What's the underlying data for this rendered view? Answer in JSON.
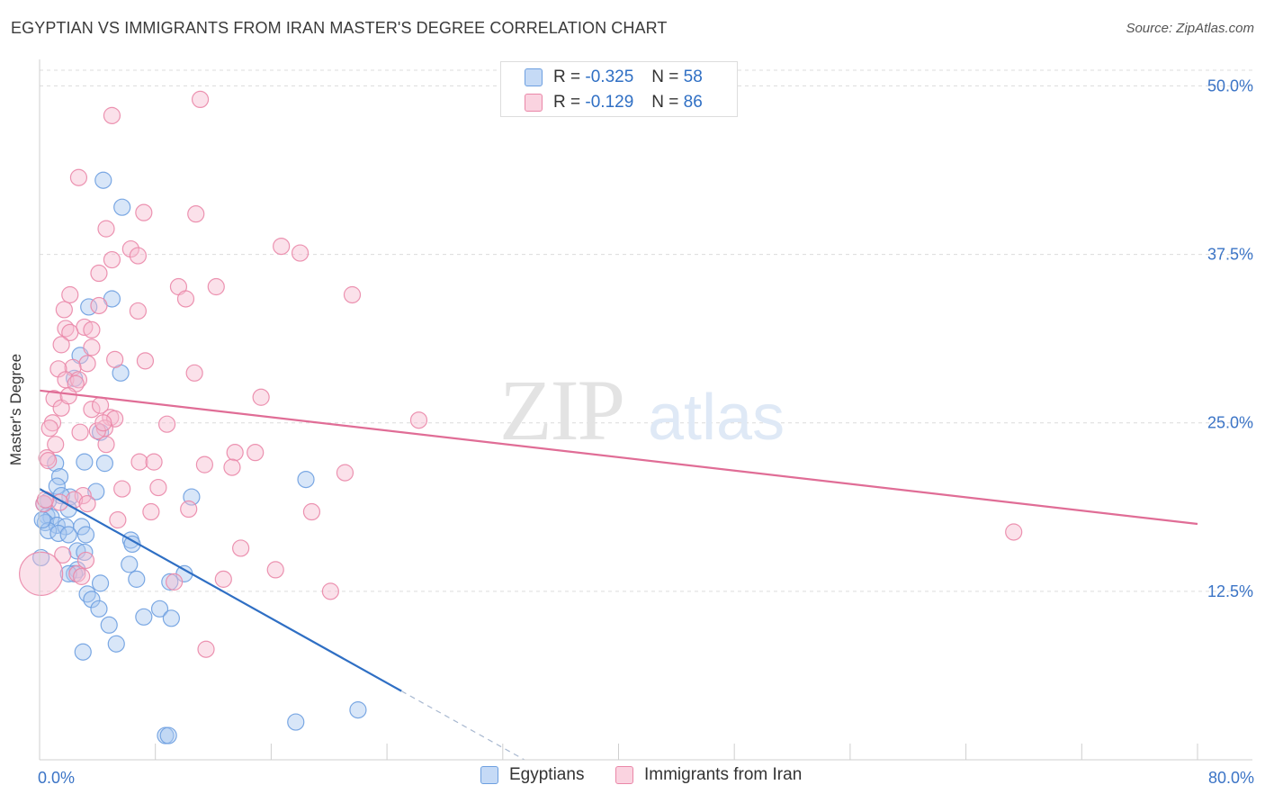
{
  "title": "EGYPTIAN VS IMMIGRANTS FROM IRAN MASTER'S DEGREE CORRELATION CHART",
  "source": "Source: ZipAtlas.com",
  "watermark": {
    "zip": "ZIP",
    "atlas": "atlas"
  },
  "legend_stats": [
    {
      "r_label": "R =",
      "r_value": "-0.325",
      "n_label": "N =",
      "n_value": "58",
      "color": "#a9c8f0",
      "border": "#6d9fe0"
    },
    {
      "r_label": "R =",
      "r_value": "-0.129",
      "n_label": "N =",
      "n_value": "86",
      "color": "#f7bcd0",
      "border": "#ea87a8"
    }
  ],
  "bottom_legend": [
    {
      "label": "Egyptians",
      "color": "#a9c8f0",
      "border": "#6d9fe0"
    },
    {
      "label": "Immigrants from Iran",
      "color": "#f7bcd0",
      "border": "#ea87a8"
    }
  ],
  "chart_data": {
    "type": "scatter",
    "title": "EGYPTIAN VS IMMIGRANTS FROM IRAN MASTER'S DEGREE CORRELATION CHART",
    "ylabel": "Master's Degree",
    "xlabel": "",
    "xlim": [
      0,
      80
    ],
    "ylim": [
      0,
      52.5
    ],
    "x_tick_labels": [
      "0.0%",
      "80.0%"
    ],
    "y_ticks": [
      12.5,
      25.0,
      37.5,
      50.0
    ],
    "y_tick_labels": [
      "12.5%",
      "25.0%",
      "37.5%",
      "50.0%"
    ],
    "grid": true,
    "legend_position": "top-center",
    "series": [
      {
        "name": "Egyptians",
        "color": "#6d9fe0",
        "fill": "#a9c8f0",
        "trend": {
          "x0": 0,
          "y0": 20.1,
          "x1": 25,
          "y1": 5.1,
          "dashed_to_x": 33.5,
          "line_color": "#2f6fc4"
        },
        "points": [
          [
            4.4,
            43.0
          ],
          [
            5.7,
            41.0
          ],
          [
            5.0,
            34.2
          ],
          [
            3.4,
            33.6
          ],
          [
            2.8,
            30.0
          ],
          [
            5.6,
            28.7
          ],
          [
            2.4,
            28.3
          ],
          [
            4.2,
            24.3
          ],
          [
            4.5,
            22.0
          ],
          [
            3.1,
            22.1
          ],
          [
            1.1,
            22.0
          ],
          [
            1.4,
            21.0
          ],
          [
            1.2,
            20.3
          ],
          [
            18.4,
            20.8
          ],
          [
            2.1,
            19.5
          ],
          [
            3.9,
            19.9
          ],
          [
            10.5,
            19.5
          ],
          [
            1.5,
            19.6
          ],
          [
            0.6,
            19.2
          ],
          [
            0.3,
            19.0
          ],
          [
            2.0,
            18.6
          ],
          [
            0.5,
            18.1
          ],
          [
            0.8,
            18.0
          ],
          [
            0.4,
            17.6
          ],
          [
            1.2,
            17.4
          ],
          [
            1.8,
            17.3
          ],
          [
            2.9,
            17.3
          ],
          [
            0.6,
            17.0
          ],
          [
            1.3,
            16.8
          ],
          [
            2.0,
            16.7
          ],
          [
            3.2,
            16.7
          ],
          [
            6.3,
            16.3
          ],
          [
            6.4,
            16.0
          ],
          [
            2.6,
            15.5
          ],
          [
            3.1,
            15.4
          ],
          [
            6.2,
            14.5
          ],
          [
            2.6,
            14.1
          ],
          [
            2.4,
            13.8
          ],
          [
            2.0,
            13.8
          ],
          [
            6.7,
            13.4
          ],
          [
            10.0,
            13.8
          ],
          [
            9.0,
            13.2
          ],
          [
            4.2,
            13.1
          ],
          [
            3.3,
            12.3
          ],
          [
            3.6,
            11.9
          ],
          [
            4.1,
            11.2
          ],
          [
            8.3,
            11.2
          ],
          [
            7.2,
            10.6
          ],
          [
            9.1,
            10.5
          ],
          [
            4.8,
            10.0
          ],
          [
            5.3,
            8.6
          ],
          [
            3.0,
            8.0
          ],
          [
            0.1,
            15.0
          ],
          [
            22.0,
            3.7
          ],
          [
            17.7,
            2.8
          ],
          [
            8.7,
            1.8
          ],
          [
            8.9,
            1.8
          ],
          [
            0.2,
            17.8
          ]
        ],
        "point_sizes": {
          "0.1,15.0": 22
        }
      },
      {
        "name": "Immigrants from Iran",
        "color": "#ea87a8",
        "fill": "#f7bcd0",
        "trend": {
          "x0": 0,
          "y0": 27.4,
          "x1": 80,
          "y1": 17.5,
          "line_color": "#e06d96"
        },
        "points": [
          [
            11.1,
            49.0
          ],
          [
            5.0,
            47.8
          ],
          [
            2.7,
            43.2
          ],
          [
            7.2,
            40.6
          ],
          [
            10.8,
            40.5
          ],
          [
            4.6,
            39.4
          ],
          [
            6.3,
            37.9
          ],
          [
            6.8,
            37.4
          ],
          [
            16.7,
            38.1
          ],
          [
            18.0,
            37.6
          ],
          [
            5.0,
            37.1
          ],
          [
            4.1,
            36.1
          ],
          [
            9.6,
            35.1
          ],
          [
            12.2,
            35.1
          ],
          [
            2.1,
            34.5
          ],
          [
            21.6,
            34.5
          ],
          [
            10.1,
            34.2
          ],
          [
            4.1,
            33.7
          ],
          [
            1.7,
            33.4
          ],
          [
            6.8,
            33.3
          ],
          [
            3.1,
            32.1
          ],
          [
            1.8,
            32.0
          ],
          [
            3.6,
            31.9
          ],
          [
            2.1,
            31.7
          ],
          [
            1.5,
            30.8
          ],
          [
            3.6,
            30.6
          ],
          [
            5.2,
            29.7
          ],
          [
            7.3,
            29.6
          ],
          [
            3.3,
            29.4
          ],
          [
            2.3,
            29.1
          ],
          [
            1.3,
            29.0
          ],
          [
            10.7,
            28.7
          ],
          [
            1.8,
            28.2
          ],
          [
            2.7,
            28.2
          ],
          [
            2.5,
            27.9
          ],
          [
            15.3,
            26.9
          ],
          [
            1.0,
            26.8
          ],
          [
            26.2,
            25.2
          ],
          [
            3.6,
            26.0
          ],
          [
            4.2,
            26.3
          ],
          [
            1.5,
            26.1
          ],
          [
            4.9,
            25.4
          ],
          [
            5.2,
            25.3
          ],
          [
            0.9,
            25.0
          ],
          [
            8.8,
            24.9
          ],
          [
            4.5,
            24.6
          ],
          [
            0.7,
            24.6
          ],
          [
            4.0,
            24.4
          ],
          [
            2.8,
            24.3
          ],
          [
            4.6,
            23.4
          ],
          [
            1.1,
            23.4
          ],
          [
            13.5,
            22.8
          ],
          [
            14.9,
            22.8
          ],
          [
            0.5,
            22.4
          ],
          [
            0.6,
            22.2
          ],
          [
            6.9,
            22.1
          ],
          [
            7.9,
            22.1
          ],
          [
            11.4,
            21.9
          ],
          [
            13.3,
            21.7
          ],
          [
            21.1,
            21.3
          ],
          [
            8.2,
            20.2
          ],
          [
            5.7,
            20.1
          ],
          [
            3.0,
            19.6
          ],
          [
            2.4,
            19.3
          ],
          [
            1.4,
            19.1
          ],
          [
            0.3,
            19.0
          ],
          [
            3.3,
            19.0
          ],
          [
            10.3,
            18.6
          ],
          [
            18.8,
            18.4
          ],
          [
            7.7,
            18.4
          ],
          [
            5.4,
            17.8
          ],
          [
            67.3,
            16.9
          ],
          [
            13.9,
            15.7
          ],
          [
            1.6,
            15.2
          ],
          [
            3.2,
            14.8
          ],
          [
            16.3,
            14.1
          ],
          [
            2.6,
            13.8
          ],
          [
            2.9,
            13.6
          ],
          [
            12.7,
            13.4
          ],
          [
            9.3,
            13.2
          ],
          [
            20.1,
            12.5
          ],
          [
            11.5,
            8.2
          ],
          [
            0.1,
            13.8
          ],
          [
            4.4,
            25.0
          ],
          [
            0.4,
            19.3
          ],
          [
            2.0,
            27.0
          ]
        ],
        "point_sizes": {
          "0.1,13.8": 24
        }
      }
    ]
  }
}
